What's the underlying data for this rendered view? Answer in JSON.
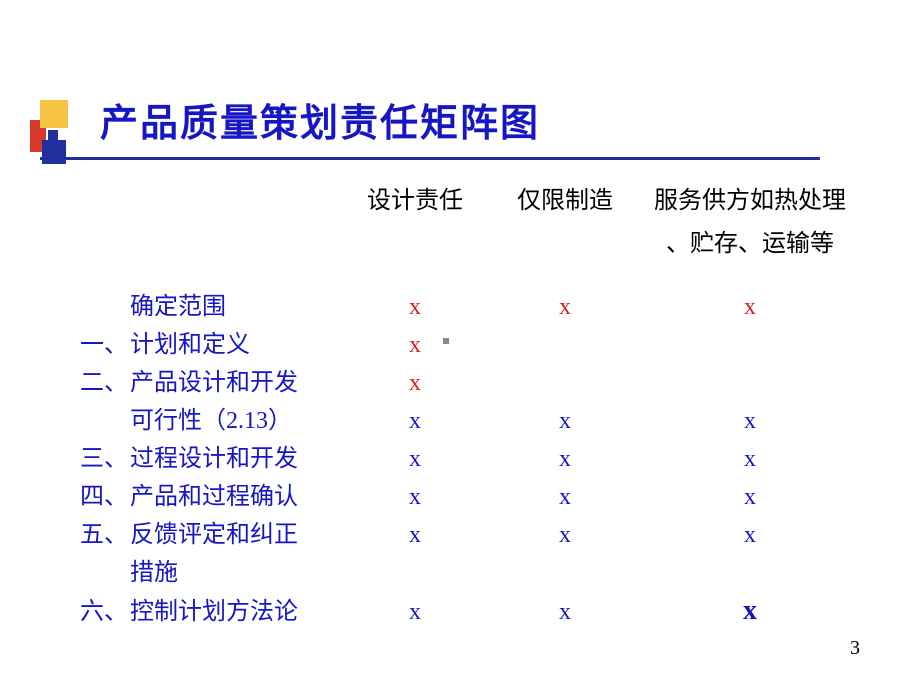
{
  "title": "产品质量策划责任矩阵图",
  "headers": {
    "col1": "设计责任",
    "col2": "仅限制造",
    "col3_line1": "服务供方如热处理",
    "col3_line2": "、贮存、运输等"
  },
  "rows": [
    {
      "num": "",
      "label": "确定范围",
      "indent": true,
      "c1": "x",
      "c2": "x",
      "c3": "x",
      "style": "red"
    },
    {
      "num": "一、",
      "label": "计划和定义",
      "indent": false,
      "c1": "x",
      "c2": "",
      "c3": "",
      "style": "red"
    },
    {
      "num": "二、",
      "label": "产品设计和开发",
      "indent": false,
      "c1": "x",
      "c2": "",
      "c3": "",
      "style": "red"
    },
    {
      "num": "",
      "label": "可行性（2.13）",
      "indent": true,
      "c1": "x",
      "c2": "x",
      "c3": "x",
      "style": "blue"
    },
    {
      "num": "三、",
      "label": "过程设计和开发",
      "indent": false,
      "c1": "x",
      "c2": "x",
      "c3": "x",
      "style": "blue"
    },
    {
      "num": "四、",
      "label": "产品和过程确认",
      "indent": false,
      "c1": "x",
      "c2": "x",
      "c3": "x",
      "style": "blue"
    },
    {
      "num": "五、",
      "label": "反馈评定和纠正",
      "indent": false,
      "c1": "x",
      "c2": "x",
      "c3": "x",
      "style": "blue"
    },
    {
      "num": "",
      "label": "措施",
      "indent": true,
      "c1": "",
      "c2": "",
      "c3": "",
      "style": "blue"
    },
    {
      "num": "六、",
      "label": "控制计划方法论",
      "indent": false,
      "c1": "x",
      "c2": "x",
      "c3": "x",
      "style": "blue",
      "c3big": true
    }
  ],
  "pagenum": "3",
  "colors": {
    "title": "#1616c4",
    "label": "#1616c4",
    "x_red": "#d62020",
    "x_blue": "#1616c4",
    "header_text": "#000000"
  }
}
